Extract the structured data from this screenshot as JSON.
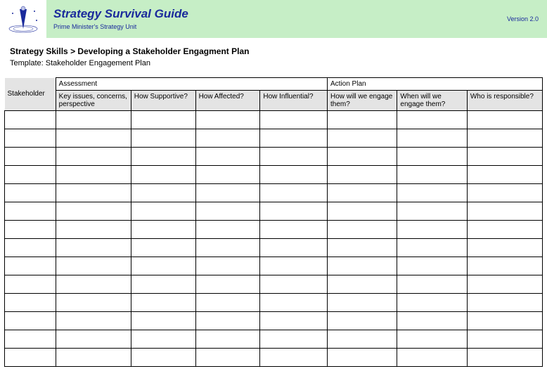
{
  "banner": {
    "bg_color": "#c6eec6",
    "title": "Strategy Survival Guide",
    "title_color": "#1a2a9c",
    "subtitle": "Prime Minister's Strategy Unit",
    "subtitle_color": "#1a2a9c",
    "version": "Version 2.0",
    "version_color": "#1a2a9c"
  },
  "breadcrumb": {
    "section": "Strategy Skills",
    "sep": ">",
    "page": "Developing a Stakeholder Engagment Plan"
  },
  "template_line": "Template: Stakeholder Engagement Plan",
  "table": {
    "header_bg": "#e4e4e4",
    "border_color": "#000000",
    "col_widths_pct": [
      9.5,
      14,
      12,
      12,
      12.5,
      13,
      13,
      14
    ],
    "stakeholder_label": "Stakeholder",
    "groups": [
      {
        "label": "Assessment",
        "span": 4
      },
      {
        "label": "Action Plan",
        "span": 3
      }
    ],
    "columns": [
      "Key issues, concerns, perspective",
      "How Supportive?",
      "How Affected?",
      "How Influential?",
      "How will we engage them?",
      "When will we engage them?",
      "Who is responsible?"
    ],
    "row_count": 14
  }
}
